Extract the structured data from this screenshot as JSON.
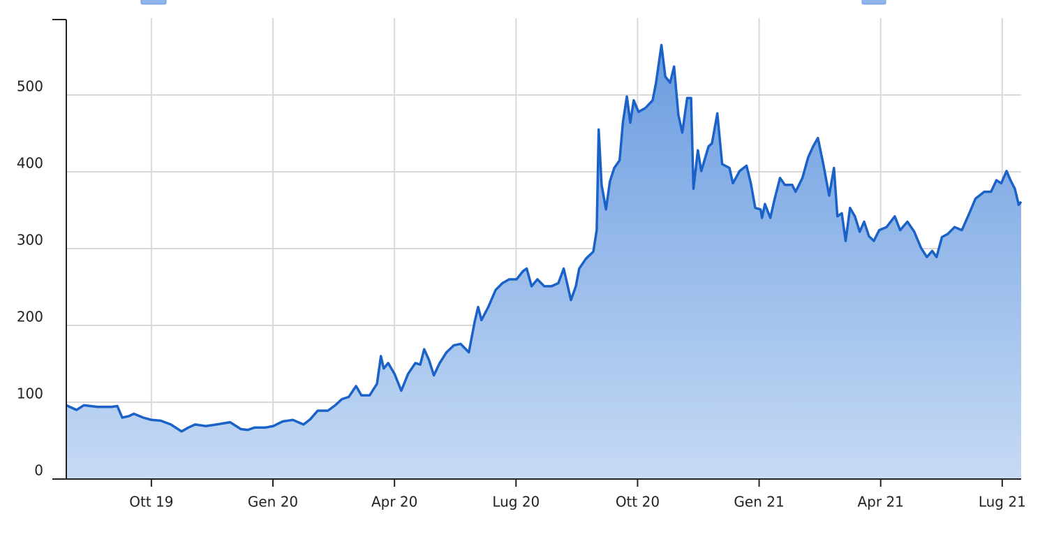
{
  "chart_data": {
    "type": "area",
    "color": "#1a62c8",
    "grid": true,
    "xlim": [
      2019.575,
      2021.539
    ],
    "ylim": [
      0,
      600
    ],
    "xticks": [
      {
        "value": 2019.75,
        "label": "Ott 19"
      },
      {
        "value": 2020.0,
        "label": "Gen 20"
      },
      {
        "value": 2020.25,
        "label": "Apr 20"
      },
      {
        "value": 2020.5,
        "label": "Lug 20"
      },
      {
        "value": 2020.75,
        "label": "Ott 20"
      },
      {
        "value": 2021.0,
        "label": "Gen 21"
      },
      {
        "value": 2021.25,
        "label": "Apr 21"
      },
      {
        "value": 2021.5,
        "label": "Lug 21"
      }
    ],
    "yticks": [
      0,
      100,
      200,
      300,
      400,
      500
    ],
    "x": [
      2019.575,
      2019.596,
      2019.611,
      2019.639,
      2019.668,
      2019.68,
      2019.69,
      2019.704,
      2019.714,
      2019.733,
      2019.75,
      2019.769,
      2019.79,
      2019.812,
      2019.826,
      2019.84,
      2019.862,
      2019.884,
      2019.912,
      2019.934,
      2019.948,
      2019.962,
      2019.984,
      2020.001,
      2020.02,
      2020.041,
      2020.063,
      2020.077,
      2020.092,
      2020.113,
      2020.128,
      2020.142,
      2020.156,
      2020.171,
      2020.182,
      2020.199,
      2020.214,
      2020.222,
      2020.228,
      2020.237,
      2020.25,
      2020.264,
      2020.278,
      2020.293,
      2020.303,
      2020.311,
      2020.321,
      2020.331,
      2020.343,
      2020.357,
      2020.372,
      2020.386,
      2020.403,
      2020.415,
      2020.422,
      2020.429,
      2020.443,
      2020.458,
      2020.472,
      2020.486,
      2020.501,
      2020.515,
      2020.522,
      2020.532,
      2020.544,
      2020.558,
      2020.573,
      2020.587,
      2020.598,
      2020.613,
      2020.623,
      2020.63,
      2020.644,
      2020.659,
      2020.666,
      2020.67,
      2020.676,
      2020.685,
      2020.693,
      2020.702,
      2020.713,
      2020.72,
      2020.728,
      2020.735,
      2020.742,
      2020.752,
      2020.766,
      2020.781,
      2020.788,
      2020.799,
      2020.807,
      2020.817,
      2020.825,
      2020.834,
      2020.842,
      2020.852,
      2020.86,
      2020.865,
      2020.874,
      2020.881,
      2020.896,
      2020.903,
      2020.914,
      2020.924,
      2020.939,
      2020.946,
      2020.96,
      2020.974,
      2020.983,
      2020.992,
      2021.003,
      2021.006,
      2021.012,
      2021.023,
      2021.032,
      2021.043,
      2021.053,
      2021.068,
      2021.075,
      2021.089,
      2021.101,
      2021.111,
      2021.121,
      2021.132,
      2021.144,
      2021.154,
      2021.161,
      2021.17,
      2021.178,
      2021.187,
      2021.197,
      2021.207,
      2021.216,
      2021.226,
      2021.236,
      2021.247,
      2021.262,
      2021.279,
      2021.29,
      2021.305,
      2021.319,
      2021.333,
      2021.345,
      2021.356,
      2021.365,
      2021.376,
      2021.388,
      2021.402,
      2021.417,
      2021.431,
      2021.445,
      2021.463,
      2021.477,
      2021.488,
      2021.498,
      2021.509,
      2021.517,
      2021.526,
      2021.534,
      2021.539
    ],
    "values": [
      96,
      90,
      96,
      94,
      94,
      95,
      80,
      82,
      85,
      80,
      77,
      76,
      71,
      62,
      67,
      71,
      69,
      71,
      74,
      65,
      64,
      67,
      67,
      69,
      75,
      77,
      71,
      78,
      89,
      89,
      96,
      104,
      107,
      121,
      109,
      109,
      124,
      160,
      144,
      151,
      137,
      115,
      137,
      151,
      149,
      169,
      155,
      135,
      151,
      165,
      174,
      176,
      165,
      205,
      224,
      207,
      224,
      246,
      255,
      260,
      260,
      271,
      274,
      251,
      260,
      251,
      251,
      255,
      274,
      233,
      251,
      274,
      287,
      296,
      324,
      455,
      383,
      351,
      387,
      405,
      415,
      465,
      498,
      464,
      493,
      478,
      483,
      493,
      516,
      565,
      524,
      516,
      537,
      474,
      451,
      496,
      496,
      378,
      428,
      401,
      433,
      437,
      476,
      410,
      405,
      385,
      401,
      408,
      385,
      353,
      351,
      340,
      358,
      340,
      365,
      392,
      383,
      383,
      374,
      392,
      419,
      433,
      444,
      410,
      369,
      405,
      342,
      346,
      310,
      353,
      342,
      322,
      335,
      316,
      310,
      324,
      328,
      342,
      324,
      335,
      322,
      301,
      289,
      297,
      289,
      315,
      319,
      328,
      324,
      344,
      365,
      374,
      374,
      389,
      385,
      401,
      389,
      378,
      357,
      361
    ]
  }
}
